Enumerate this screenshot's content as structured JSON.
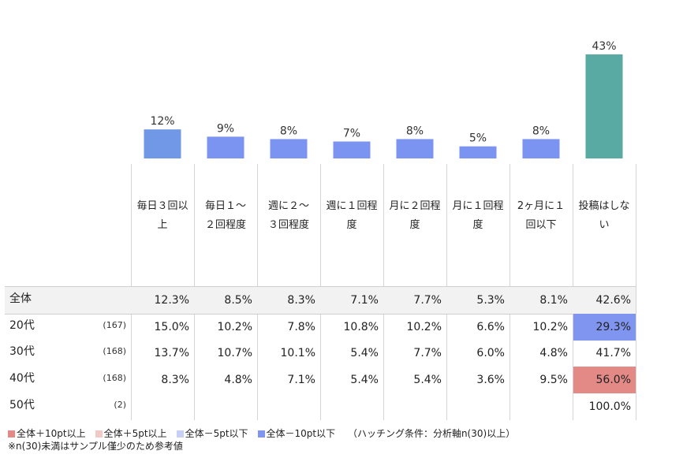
{
  "chart_data": {
    "type": "bar",
    "categories": [
      "毎日３回以上",
      "毎日１～２回程度",
      "週に２～３回程度",
      "週に１回程度",
      "月に２回程度",
      "月に１回程度",
      "2ヶ月に１回以下",
      "投稿はしない"
    ],
    "values": [
      12,
      9,
      8,
      7,
      8,
      5,
      8,
      43
    ],
    "value_labels": [
      "12%",
      "9%",
      "8%",
      "7%",
      "8%",
      "5%",
      "8%",
      "43%"
    ],
    "bar_colors": [
      "#7098e6",
      "#7b94f1",
      "#7b94f1",
      "#7b94f1",
      "#7b94f1",
      "#7b94f1",
      "#7b94f1",
      "#58aaa2"
    ],
    "ylim": [
      0,
      43
    ]
  },
  "table": {
    "columns": [
      "毎日３回以上",
      "毎日１～２回程度",
      "週に２～３回程度",
      "週に１回程度",
      "月に２回程度",
      "月に１回程度",
      "2ヶ月に１回以下",
      "投稿はしない"
    ],
    "header_lines": [
      [
        "毎日３回以",
        "上"
      ],
      [
        "毎日１～",
        "２回程度"
      ],
      [
        "週に２～",
        "３回程度"
      ],
      [
        "週に１回程",
        "度"
      ],
      [
        "月に２回程",
        "度"
      ],
      [
        "月に１回程",
        "度"
      ],
      [
        "2ヶ月に１",
        "回以下"
      ],
      [
        "投稿はしな",
        "い"
      ]
    ],
    "rows": [
      {
        "label": "全体",
        "n": "",
        "values": [
          "12.3%",
          "8.5%",
          "8.3%",
          "7.1%",
          "7.7%",
          "5.3%",
          "8.1%",
          "42.6%"
        ],
        "highlights": [
          "",
          "",
          "",
          "",
          "",
          "",
          "",
          ""
        ]
      },
      {
        "label": "20代",
        "n": "(167)",
        "values": [
          "15.0%",
          "10.2%",
          "7.8%",
          "10.8%",
          "10.2%",
          "6.6%",
          "10.2%",
          "29.3%"
        ],
        "highlights": [
          "",
          "",
          "",
          "",
          "",
          "",
          "",
          "#8095ef"
        ]
      },
      {
        "label": "30代",
        "n": "(168)",
        "values": [
          "13.7%",
          "10.7%",
          "10.1%",
          "5.4%",
          "7.7%",
          "6.0%",
          "4.8%",
          "41.7%"
        ],
        "highlights": [
          "",
          "",
          "",
          "",
          "",
          "",
          "",
          ""
        ]
      },
      {
        "label": "40代",
        "n": "(168)",
        "values": [
          "8.3%",
          "4.8%",
          "7.1%",
          "5.4%",
          "5.4%",
          "3.6%",
          "9.5%",
          "56.0%"
        ],
        "highlights": [
          "",
          "",
          "",
          "",
          "",
          "",
          "",
          "#e48a86"
        ]
      },
      {
        "label": "50代",
        "n": "(2)",
        "values": [
          "",
          "",
          "",
          "",
          "",
          "",
          "",
          "100.0%"
        ],
        "highlights": [
          "",
          "",
          "",
          "",
          "",
          "",
          "",
          ""
        ]
      }
    ]
  },
  "legend": [
    {
      "label": "全体＋10pt以上",
      "color": "#e48a86"
    },
    {
      "label": "全体＋5pt以上",
      "color": "#f2c9c7"
    },
    {
      "label": "全体－5pt以下",
      "color": "#c7cff6"
    },
    {
      "label": "全体－10pt以下",
      "color": "#8095ef"
    }
  ],
  "legend_condition": "（ハッチング条件：分析軸n(30)以上）",
  "note": "※n(30)未満はサンプル僅少のため参考値"
}
